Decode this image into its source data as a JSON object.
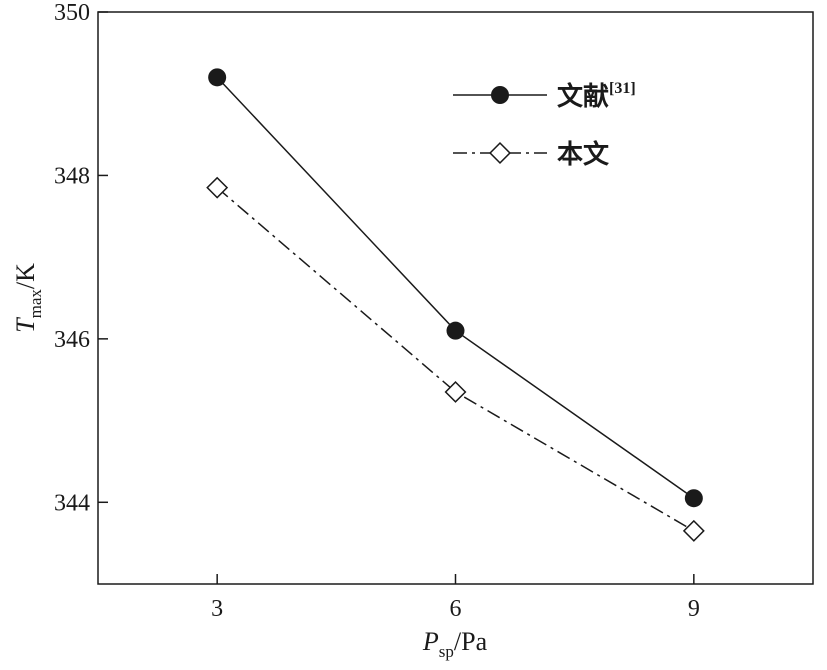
{
  "chart_data": {
    "type": "line",
    "x": [
      3,
      6,
      9
    ],
    "xlim": [
      1.5,
      10.5
    ],
    "ylim": [
      343,
      350
    ],
    "x_ticks": [
      3,
      6,
      9
    ],
    "y_ticks": [
      344,
      346,
      348,
      350
    ],
    "y_tick_labels": [
      "344",
      "346",
      "348",
      "350"
    ],
    "x_tick_labels": [
      "3",
      "6",
      "9"
    ],
    "xlabel": {
      "main": "P",
      "sub": "sp",
      "unit": "/Pa"
    },
    "ylabel": {
      "main": "T",
      "sub": "max",
      "unit": "/K"
    },
    "legend_position": "top-right",
    "grid": false,
    "series": [
      {
        "name": "文献",
        "name_sup": "[31]",
        "values": [
          349.2,
          346.1,
          344.05
        ],
        "line_style": "solid",
        "marker": "filled-circle",
        "color": "#1a1a1a"
      },
      {
        "name": "本文",
        "values": [
          347.85,
          345.35,
          343.65
        ],
        "line_style": "dash-dot",
        "marker": "open-diamond",
        "color": "#1a1a1a"
      }
    ]
  }
}
